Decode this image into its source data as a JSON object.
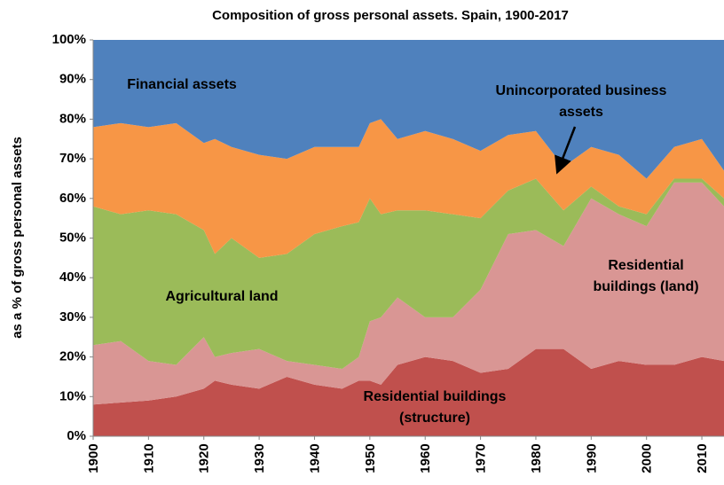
{
  "chart_data": {
    "type": "stacked_area",
    "title": "Composition of gross personal assets. Spain, 1900-2017",
    "y_label": "as a % of gross personal assets",
    "x": [
      1900,
      1905,
      1910,
      1915,
      1920,
      1922,
      1925,
      1930,
      1935,
      1940,
      1945,
      1948,
      1950,
      1952,
      1955,
      1960,
      1965,
      1970,
      1975,
      1980,
      1985,
      1990,
      1995,
      2000,
      2005,
      2010,
      2014
    ],
    "series": [
      {
        "name": "Residential buildings (structure)",
        "color": "#c0504d",
        "values": [
          8,
          8.5,
          9,
          10,
          12,
          14,
          13,
          12,
          15,
          13,
          12,
          14,
          14,
          13,
          18,
          20,
          19,
          16,
          17,
          22,
          22,
          17,
          19,
          18,
          18,
          20,
          19
        ]
      },
      {
        "name": "Residential buildings (land)",
        "color": "#d99694",
        "values": [
          15,
          15.5,
          10,
          8,
          13,
          6,
          8,
          10,
          4,
          5,
          5,
          6,
          15,
          17,
          17,
          10,
          11,
          21,
          34,
          30,
          26,
          43,
          37,
          35,
          46,
          44,
          39
        ]
      },
      {
        "name": "Agricultural land",
        "color": "#9bbb59",
        "values": [
          35,
          32,
          38,
          38,
          27,
          26,
          29,
          23,
          27,
          33,
          36,
          34,
          31,
          26,
          22,
          27,
          26,
          18,
          11,
          13,
          9,
          3,
          2,
          3,
          1,
          1,
          2
        ]
      },
      {
        "name": "Unincorporated  business assets",
        "color": "#f79646",
        "values": [
          20,
          23,
          21,
          23,
          22,
          29,
          23,
          26,
          24,
          22,
          20,
          19,
          19,
          24,
          18,
          20,
          19,
          17,
          14,
          12,
          11,
          10,
          13,
          9,
          8,
          10,
          7
        ]
      },
      {
        "name": "Financial assets",
        "color": "#4f81bd",
        "values": [
          22,
          21,
          22,
          21,
          26,
          25,
          27,
          29,
          30,
          27,
          27,
          27,
          21,
          20,
          25,
          23,
          25,
          28,
          24,
          23,
          32,
          27,
          29,
          35,
          27,
          25,
          33
        ]
      }
    ],
    "xlim": [
      1900,
      2014
    ],
    "xticks": [
      1900,
      1910,
      1920,
      1930,
      1940,
      1950,
      1960,
      1970,
      1980,
      1990,
      2000,
      2010
    ],
    "ylim": [
      0,
      100
    ],
    "yticks": [
      {
        "value": 0,
        "label": "0%"
      },
      {
        "value": 10,
        "label": "10%"
      },
      {
        "value": 20,
        "label": "20%"
      },
      {
        "value": 30,
        "label": "30%"
      },
      {
        "value": 40,
        "label": "40%"
      },
      {
        "value": 50,
        "label": "50%"
      },
      {
        "value": 60,
        "label": "60%"
      },
      {
        "value": 70,
        "label": "70%"
      },
      {
        "value": 80,
        "label": "80%"
      },
      {
        "value": 90,
        "label": "90%"
      },
      {
        "value": 100,
        "label": "100%"
      }
    ]
  }
}
